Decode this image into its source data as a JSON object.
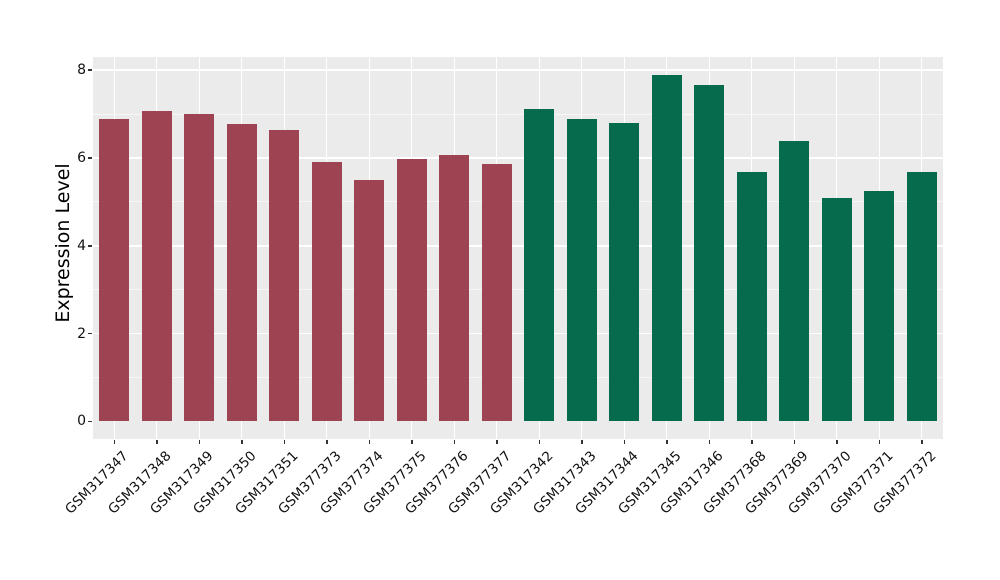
{
  "chart_data": {
    "type": "bar",
    "title": "",
    "xlabel": "",
    "ylabel": "Expression Level",
    "yticks": [
      0,
      2,
      4,
      6,
      8
    ],
    "ytick_labels": [
      "0",
      "2",
      "4",
      "6",
      "8"
    ],
    "ylim": [
      -0.4,
      8.3
    ],
    "grid": true,
    "legend_position": "none",
    "panel_background": "#EBEBEB",
    "gridline_color": "#FFFFFF",
    "categories": [
      "GSM317347",
      "GSM317348",
      "GSM317349",
      "GSM317350",
      "GSM317351",
      "GSM377373",
      "GSM377374",
      "GSM377375",
      "GSM377376",
      "GSM377377",
      "GSM317342",
      "GSM317343",
      "GSM317344",
      "GSM317345",
      "GSM317346",
      "GSM377368",
      "GSM377369",
      "GSM377370",
      "GSM377371",
      "GSM377372"
    ],
    "values": [
      6.89,
      7.08,
      7.0,
      6.78,
      6.64,
      5.92,
      5.5,
      5.98,
      6.06,
      5.87,
      7.12,
      6.88,
      6.79,
      7.9,
      7.67,
      5.67,
      6.39,
      5.08,
      5.24,
      5.67
    ],
    "bar_groups": [
      "maroon",
      "maroon",
      "maroon",
      "maroon",
      "maroon",
      "maroon",
      "maroon",
      "maroon",
      "maroon",
      "maroon",
      "green",
      "green",
      "green",
      "green",
      "green",
      "green",
      "green",
      "green",
      "green",
      "green"
    ],
    "group_colors": {
      "maroon": "#9E4352",
      "green": "#066A4C"
    }
  }
}
